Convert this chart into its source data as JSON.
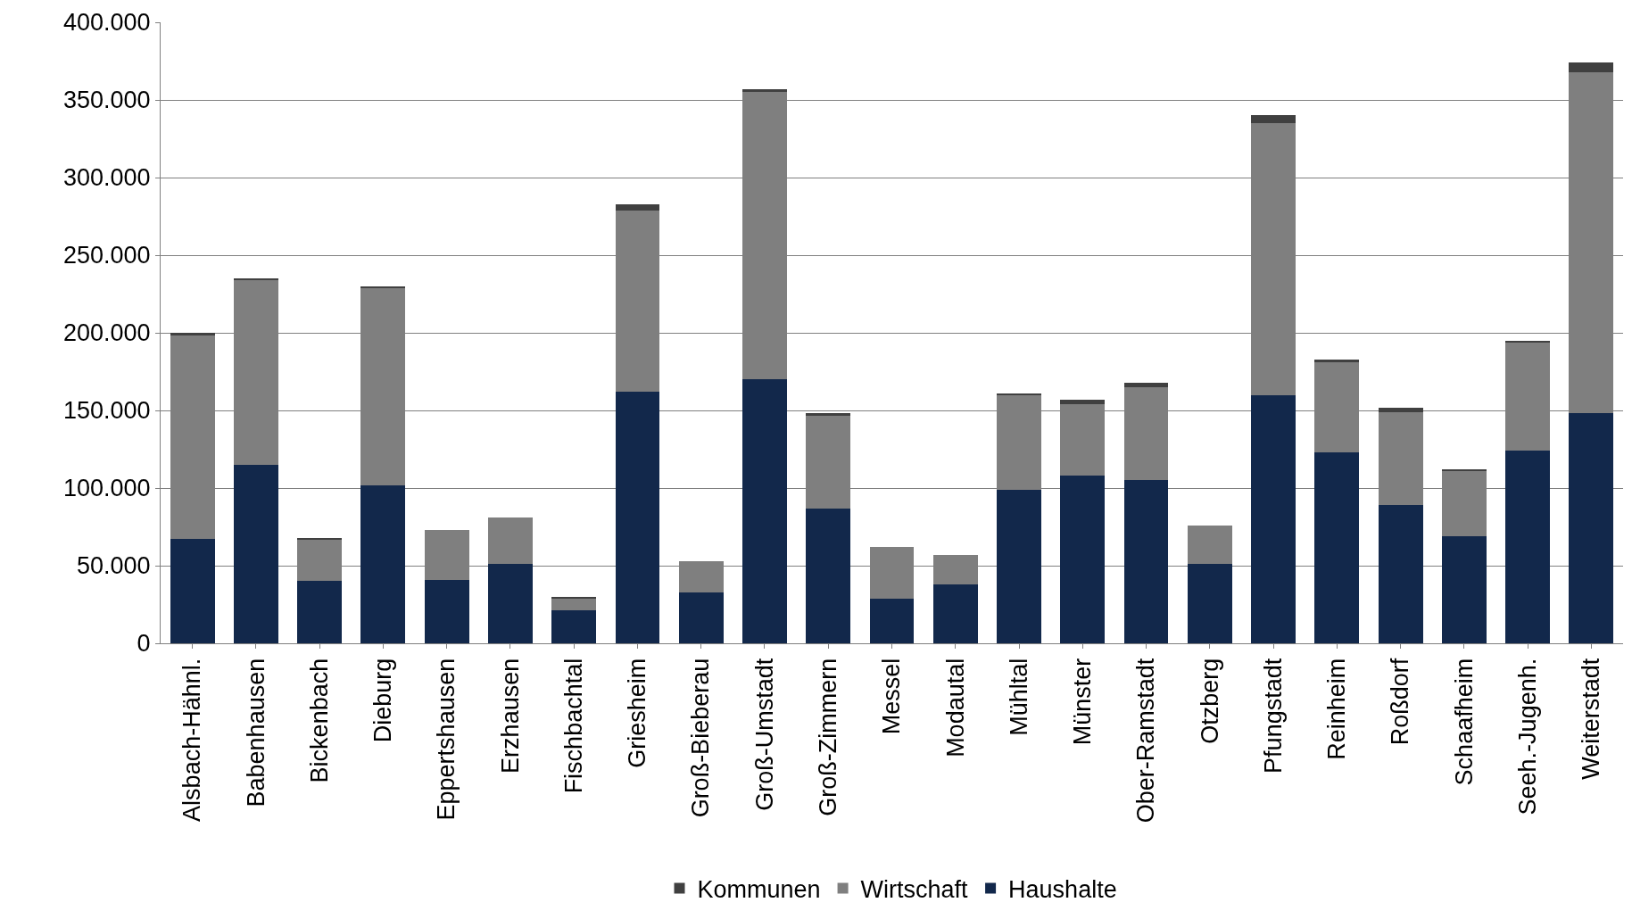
{
  "chart_data": {
    "type": "bar",
    "stacked": true,
    "categories": [
      "Alsbach-Hähnl.",
      "Babenhausen",
      "Bickenbach",
      "Dieburg",
      "Eppertshausen",
      "Erzhausen",
      "Fischbachtal",
      "Griesheim",
      "Groß-Bieberau",
      "Groß-Umstadt",
      "Groß-Zimmern",
      "Messel",
      "Modautal",
      "Mühltal",
      "Münster",
      "Ober-Ramstadt",
      "Otzberg",
      "Pfungstadt",
      "Reinheim",
      "Roßdorf",
      "Schaafheim",
      "Seeh.-Jugenh.",
      "Weiterstadt"
    ],
    "series": [
      {
        "name": "Haushalte",
        "color": "#12284b",
        "values": [
          67000,
          115000,
          40000,
          102000,
          41000,
          51000,
          21000,
          162000,
          33000,
          170000,
          87000,
          29000,
          38000,
          99000,
          108000,
          105000,
          51000,
          160000,
          123000,
          89000,
          69000,
          124000,
          148000
        ]
      },
      {
        "name": "Wirtschaft",
        "color": "#7f7f7f",
        "values": [
          131000,
          119000,
          27000,
          127000,
          32000,
          30000,
          8000,
          117000,
          20000,
          185000,
          60000,
          33000,
          19000,
          61000,
          46000,
          60000,
          25000,
          175000,
          58000,
          60000,
          42000,
          70000,
          220000
        ]
      },
      {
        "name": "Kommunen",
        "color": "#404040",
        "values": [
          2000,
          1000,
          1000,
          1000,
          0,
          0,
          1000,
          4000,
          0,
          2000,
          1000,
          0,
          0,
          1000,
          3000,
          3000,
          0,
          5000,
          2000,
          3000,
          1000,
          1000,
          6000
        ]
      }
    ],
    "ylim": [
      0,
      400000
    ],
    "yticks": [
      {
        "value": 0,
        "label": "0"
      },
      {
        "value": 50000,
        "label": "50.000"
      },
      {
        "value": 100000,
        "label": "100.000"
      },
      {
        "value": 150000,
        "label": "150.000"
      },
      {
        "value": 200000,
        "label": "200.000"
      },
      {
        "value": 250000,
        "label": "250.000"
      },
      {
        "value": 300000,
        "label": "300.000"
      },
      {
        "value": 350000,
        "label": "350.000"
      },
      {
        "value": 400000,
        "label": "400.000"
      }
    ],
    "grid": "y",
    "legend": "bottom"
  }
}
